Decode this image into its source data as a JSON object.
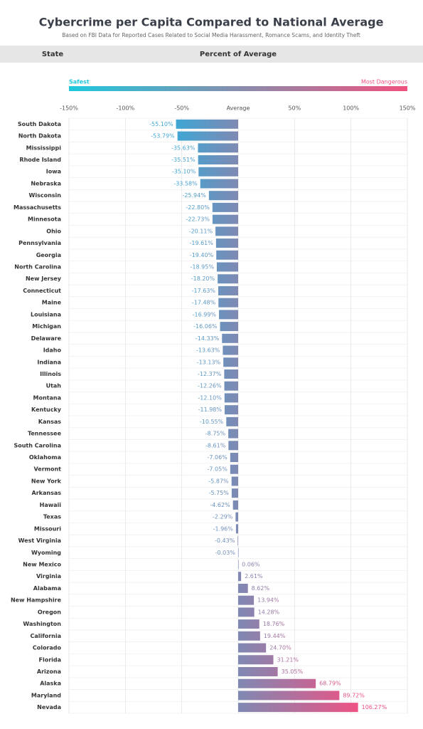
{
  "chart_data": {
    "type": "barh",
    "title": "Cybercrime per Capita Compared to National Average",
    "subtitle": "Based on FBI Data for Reported Cases Related to Social Media Harassment, Romance Scams, and Identity Theft",
    "row_header": "State",
    "xlabel": "Percent of Average",
    "scale_low_label": "Safest",
    "scale_high_label": "Most Dangerous",
    "scale_colors": [
      "#1ec8dc",
      "#f0527e"
    ],
    "bar_colors": [
      "#3fa6d4",
      "#7f89b3",
      "#ee5283"
    ],
    "xlim": [
      -150,
      150
    ],
    "xticks": [
      {
        "value": -150,
        "label": "-150%"
      },
      {
        "value": -100,
        "label": "-100%"
      },
      {
        "value": -50,
        "label": "-50%"
      },
      {
        "value": 0,
        "label": "Average"
      },
      {
        "value": 50,
        "label": "50%"
      },
      {
        "value": 100,
        "label": "100%"
      },
      {
        "value": 150,
        "label": "150%"
      }
    ],
    "grid": true,
    "categories": [
      "South Dakota",
      "North Dakota",
      "Mississippi",
      "Rhode Island",
      "Iowa",
      "Nebraska",
      "Wisconsin",
      "Massachusetts",
      "Minnesota",
      "Ohio",
      "Pennsylvania",
      "Georgia",
      "North Carolina",
      "New Jersey",
      "Connecticut",
      "Maine",
      "Louisiana",
      "Michigan",
      "Delaware",
      "Idaho",
      "Indiana",
      "Illinois",
      "Utah",
      "Montana",
      "Kentucky",
      "Kansas",
      "Tennessee",
      "South Carolina",
      "Oklahoma",
      "Vermont",
      "New York",
      "Arkansas",
      "Hawaii",
      "Texas",
      "Missouri",
      "West Virginia",
      "Wyoming",
      "New Mexico",
      "Virginia",
      "Alabama",
      "New Hampshire",
      "Oregon",
      "Washington",
      "California",
      "Colorado",
      "Florida",
      "Arizona",
      "Alaska",
      "Maryland",
      "Nevada"
    ],
    "values": [
      -55.1,
      -53.79,
      -35.63,
      -35.51,
      -35.1,
      -33.58,
      -25.94,
      -22.8,
      -22.73,
      -20.11,
      -19.61,
      -19.4,
      -18.95,
      -18.2,
      -17.63,
      -17.48,
      -16.99,
      -16.06,
      -14.33,
      -13.63,
      -13.13,
      -12.37,
      -12.26,
      -12.1,
      -11.98,
      -10.55,
      -8.75,
      -8.61,
      -7.06,
      -7.05,
      -5.87,
      -5.75,
      -4.62,
      -2.29,
      -1.96,
      -0.43,
      -0.03,
      0.06,
      2.61,
      8.62,
      13.94,
      14.28,
      18.76,
      19.44,
      24.7,
      31.21,
      35.05,
      68.79,
      89.72,
      106.27
    ],
    "value_labels": [
      "-55.10%",
      "-53.79%",
      "-35.63%",
      "-35.51%",
      "-35.10%",
      "-33.58%",
      "-25.94%",
      "-22.80%",
      "-22.73%",
      "-20.11%",
      "-19.61%",
      "-19.40%",
      "-18.95%",
      "-18.20%",
      "-17.63%",
      "-17.48%",
      "-16.99%",
      "-16.06%",
      "-14.33%",
      "-13.63%",
      "-13.13%",
      "-12.37%",
      "-12.26%",
      "-12.10%",
      "-11.98%",
      "-10.55%",
      "-8.75%",
      "-8.61%",
      "-7.06%",
      "-7.05%",
      "-5.87%",
      "-5.75%",
      "-4.62%",
      "-2.29%",
      "-1.96%",
      "-0.43%",
      "-0.03%",
      "0.06%",
      "2.61%",
      "8.62%",
      "13.94%",
      "14.28%",
      "18.76%",
      "19.44%",
      "24.70%",
      "31.21%",
      "35.05%",
      "68.79%",
      "89.72%",
      "106.27%"
    ]
  }
}
